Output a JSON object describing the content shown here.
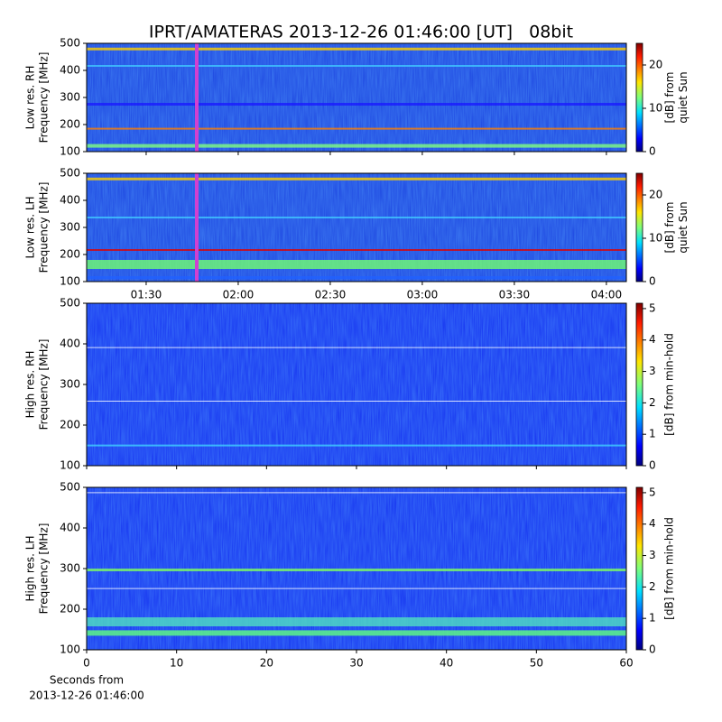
{
  "chart_data": [
    {
      "type": "spectrogram",
      "title": "IPRT/AMATERAS 2013-12-26 01:46:00 [UT]   08bit",
      "ylabel": [
        "Low res. RH",
        "Frequency [MHz]"
      ],
      "ylim": [
        100,
        500
      ],
      "yticks": [
        100,
        200,
        300,
        400,
        500
      ],
      "xlim": [
        70.6,
        246.5
      ],
      "colorbar": {
        "label": [
          "[dB] from",
          "quiet Sun"
        ],
        "lim": [
          0,
          25
        ],
        "ticks": [
          0,
          10,
          20
        ]
      }
    },
    {
      "type": "spectrogram",
      "ylabel": [
        "Low res. LH",
        "Frequency [MHz]"
      ],
      "ylim": [
        100,
        500
      ],
      "yticks": [
        100,
        200,
        300,
        400,
        500
      ],
      "xlim": [
        70.6,
        246.5
      ],
      "xticks": [
        {
          "value": 90,
          "label": "01:30"
        },
        {
          "value": 120,
          "label": "02:00"
        },
        {
          "value": 150,
          "label": "02:30"
        },
        {
          "value": 180,
          "label": "03:00"
        },
        {
          "value": 210,
          "label": "03:30"
        },
        {
          "value": 240,
          "label": "04:00"
        }
      ],
      "colorbar": {
        "label": [
          "[dB] from",
          "quiet Sun"
        ],
        "lim": [
          0,
          25
        ],
        "ticks": [
          0,
          10,
          20
        ]
      }
    },
    {
      "type": "spectrogram",
      "ylabel": [
        "High res. RH",
        "Frequency [MHz]"
      ],
      "ylim": [
        100,
        500
      ],
      "yticks": [
        100,
        200,
        300,
        400,
        500
      ],
      "xlim": [
        0,
        60
      ],
      "colorbar": {
        "label": [
          "[dB] from min-hold"
        ],
        "lim": [
          0,
          5.17
        ],
        "ticks": [
          0,
          1,
          2,
          3,
          4,
          5
        ]
      }
    },
    {
      "type": "spectrogram",
      "ylabel": [
        "High res. LH",
        "Frequency [MHz]"
      ],
      "ylim": [
        100,
        500
      ],
      "yticks": [
        100,
        200,
        300,
        400,
        500
      ],
      "xlim": [
        0,
        60
      ],
      "xticks": [
        0,
        10,
        20,
        30,
        40,
        50,
        60
      ],
      "xlabel": [
        "Seconds from",
        "2013-12-26 01:46:00"
      ],
      "colorbar": {
        "label": [
          "[dB] from min-hold"
        ],
        "lim": [
          0,
          5.17
        ],
        "ticks": [
          0,
          1,
          2,
          3,
          4,
          5
        ]
      }
    }
  ]
}
